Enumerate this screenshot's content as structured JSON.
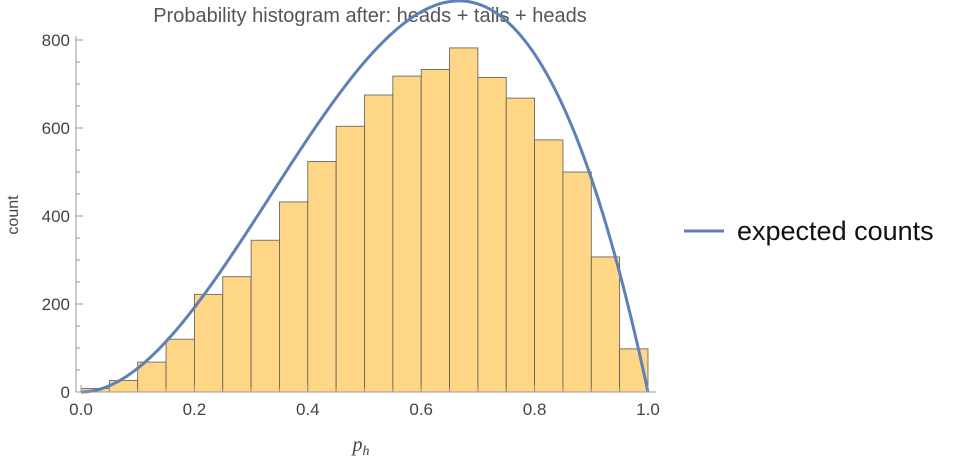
{
  "chart_data": {
    "type": "bar",
    "title": "Probability histogram after: heads + tails + heads",
    "xlabel": "p",
    "xlabel_subscript": "h",
    "ylabel": "count",
    "xlim": [
      0,
      1
    ],
    "ylim": [
      0,
      800
    ],
    "x_ticks": [
      "0.0",
      "0.2",
      "0.4",
      "0.6",
      "0.8",
      "1.0"
    ],
    "y_ticks": [
      "0",
      "200",
      "400",
      "600",
      "800"
    ],
    "bin_width": 0.05,
    "bin_starts": [
      0.0,
      0.05,
      0.1,
      0.15,
      0.2,
      0.25,
      0.3,
      0.35,
      0.4,
      0.45,
      0.5,
      0.55,
      0.6,
      0.65,
      0.7,
      0.75,
      0.8,
      0.85,
      0.9,
      0.95
    ],
    "values": [
      8,
      26,
      68,
      120,
      222,
      262,
      345,
      432,
      524,
      604,
      675,
      718,
      733,
      782,
      715,
      668,
      573,
      500,
      307,
      98
    ],
    "series": [
      {
        "name": "expected counts",
        "type": "line",
        "formula": "12*10000*0.05*p^2*(1-p)"
      }
    ],
    "legend_position": "right",
    "colors": {
      "bar_fill": "#FFD685",
      "bar_stroke": "#5a5a5a",
      "line": "#5E81B5",
      "axis": "#999999"
    }
  }
}
